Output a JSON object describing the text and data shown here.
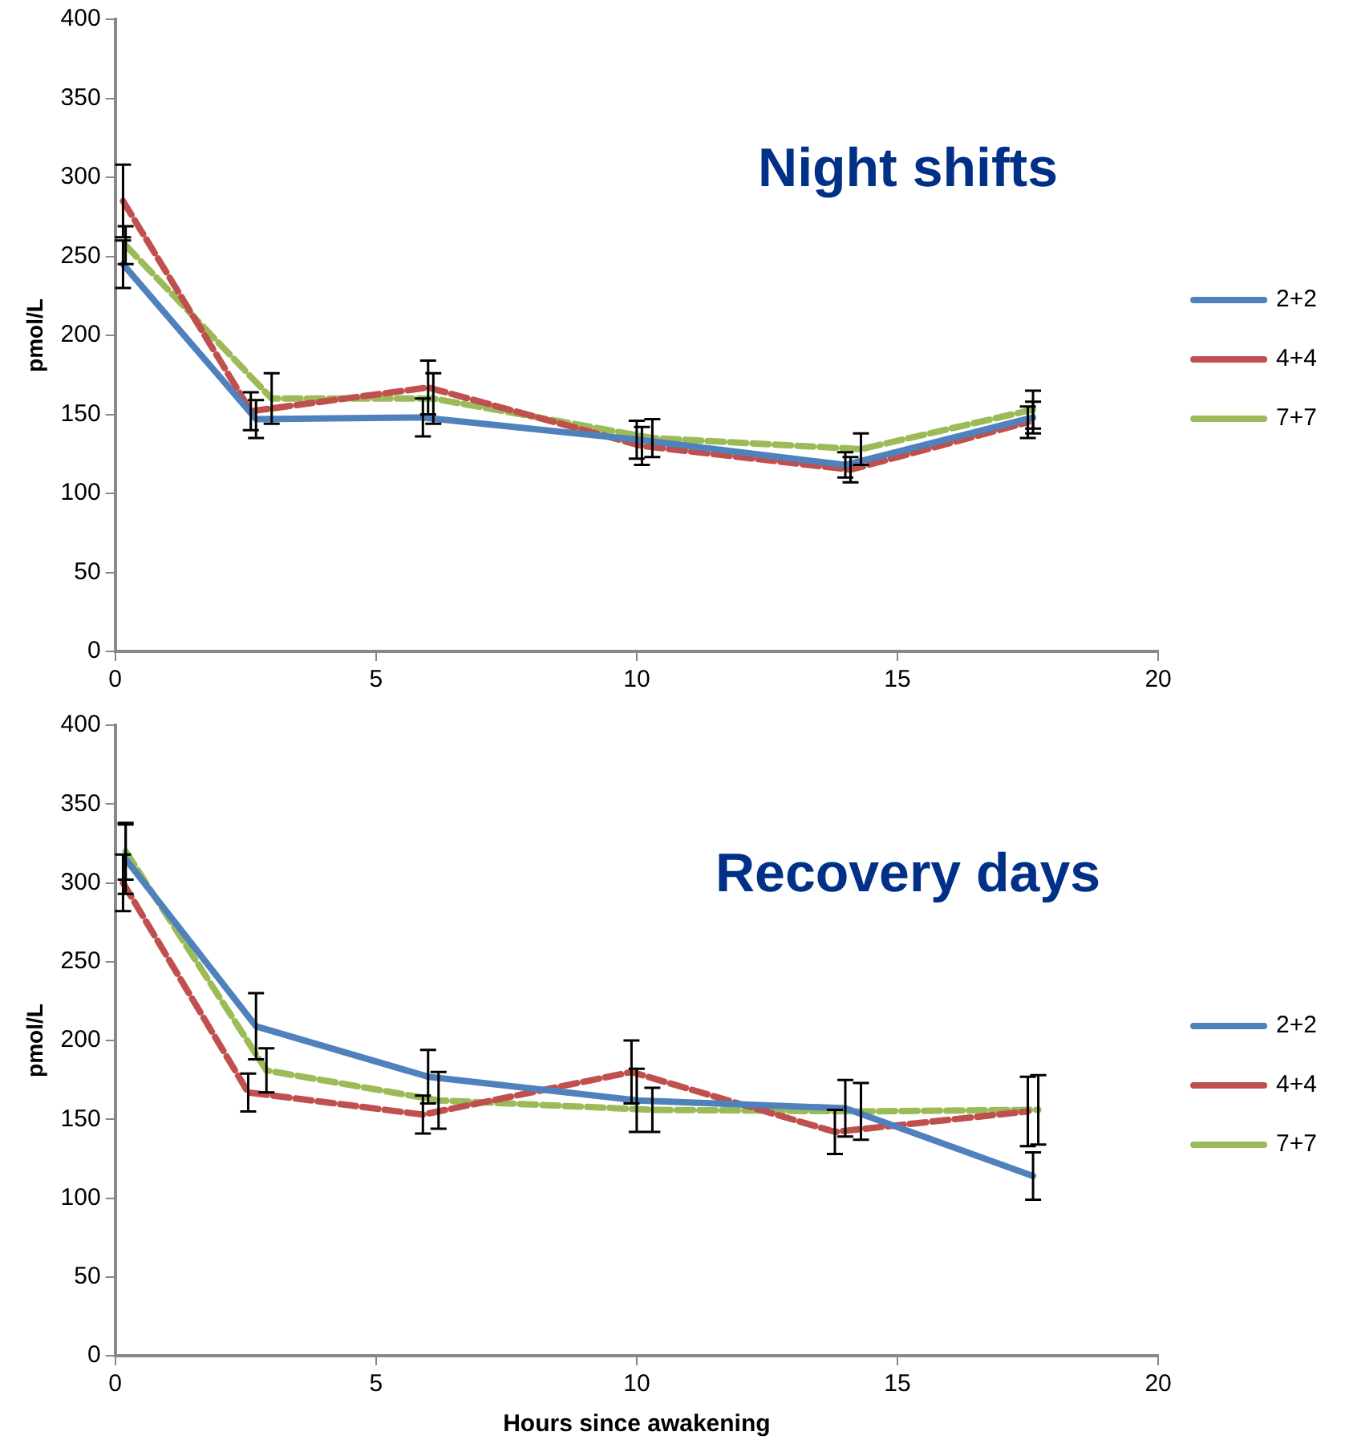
{
  "chart_data": [
    {
      "type": "line",
      "title": "Night shifts",
      "ylabel": "pmol/L",
      "xlim": [
        0,
        20
      ],
      "xticks": [
        0,
        5,
        10,
        15,
        20
      ],
      "ylim": [
        0,
        400
      ],
      "yticks": [
        0,
        50,
        100,
        150,
        200,
        250,
        300,
        350,
        400
      ],
      "legend": "right",
      "grid": false,
      "marker": "none",
      "series": [
        {
          "name": "2+2",
          "color": "#4f81bd",
          "line_style": "solid",
          "x": [
            0.15,
            2.7,
            5.9,
            10,
            14,
            17.6
          ],
          "values": [
            245,
            147,
            148,
            134,
            118,
            148
          ],
          "errors": [
            15,
            12,
            12,
            12,
            8,
            10
          ]
        },
        {
          "name": "4+4",
          "color": "#c0504d",
          "line_style": "dashed",
          "x": [
            0.15,
            2.6,
            6,
            10.1,
            14.1,
            17.5
          ],
          "values": [
            285,
            152,
            167,
            130,
            115,
            145
          ],
          "errors": [
            23,
            12,
            17,
            12,
            8,
            10
          ]
        },
        {
          "name": "7+7",
          "color": "#9bbb59",
          "line_style": "dashed",
          "x": [
            0.2,
            3,
            6.1,
            10.3,
            14.3,
            17.6
          ],
          "values": [
            257,
            160,
            160,
            135,
            128,
            153
          ],
          "errors": [
            12,
            16,
            16,
            12,
            10,
            12
          ]
        }
      ]
    },
    {
      "type": "line",
      "title": "Recovery days",
      "xlabel": "Hours since awakening",
      "ylabel": "pmol/L",
      "xlim": [
        0,
        20
      ],
      "xticks": [
        0,
        5,
        10,
        15,
        20
      ],
      "ylim": [
        0,
        400
      ],
      "yticks": [
        0,
        50,
        100,
        150,
        200,
        250,
        300,
        350,
        400
      ],
      "legend": "right",
      "grid": false,
      "marker": "none",
      "series": [
        {
          "name": "2+2",
          "color": "#4f81bd",
          "line_style": "solid",
          "x": [
            0.2,
            2.7,
            6,
            10,
            14,
            17.6
          ],
          "values": [
            315,
            209,
            177,
            162,
            157,
            114
          ],
          "errors": [
            22,
            21,
            17,
            20,
            18,
            15
          ]
        },
        {
          "name": "4+4",
          "color": "#c0504d",
          "line_style": "dashed",
          "x": [
            0.15,
            2.55,
            5.9,
            9.9,
            13.8,
            17.5
          ],
          "values": [
            300,
            167,
            153,
            180,
            142,
            155
          ],
          "errors": [
            18,
            12,
            12,
            20,
            14,
            22
          ]
        },
        {
          "name": "7+7",
          "color": "#9bbb59",
          "line_style": "dashed",
          "x": [
            0.2,
            2.9,
            6.2,
            10.3,
            14.3,
            17.7
          ],
          "values": [
            320,
            181,
            162,
            156,
            155,
            156
          ],
          "errors": [
            18,
            14,
            18,
            14,
            18,
            22
          ]
        }
      ]
    }
  ]
}
